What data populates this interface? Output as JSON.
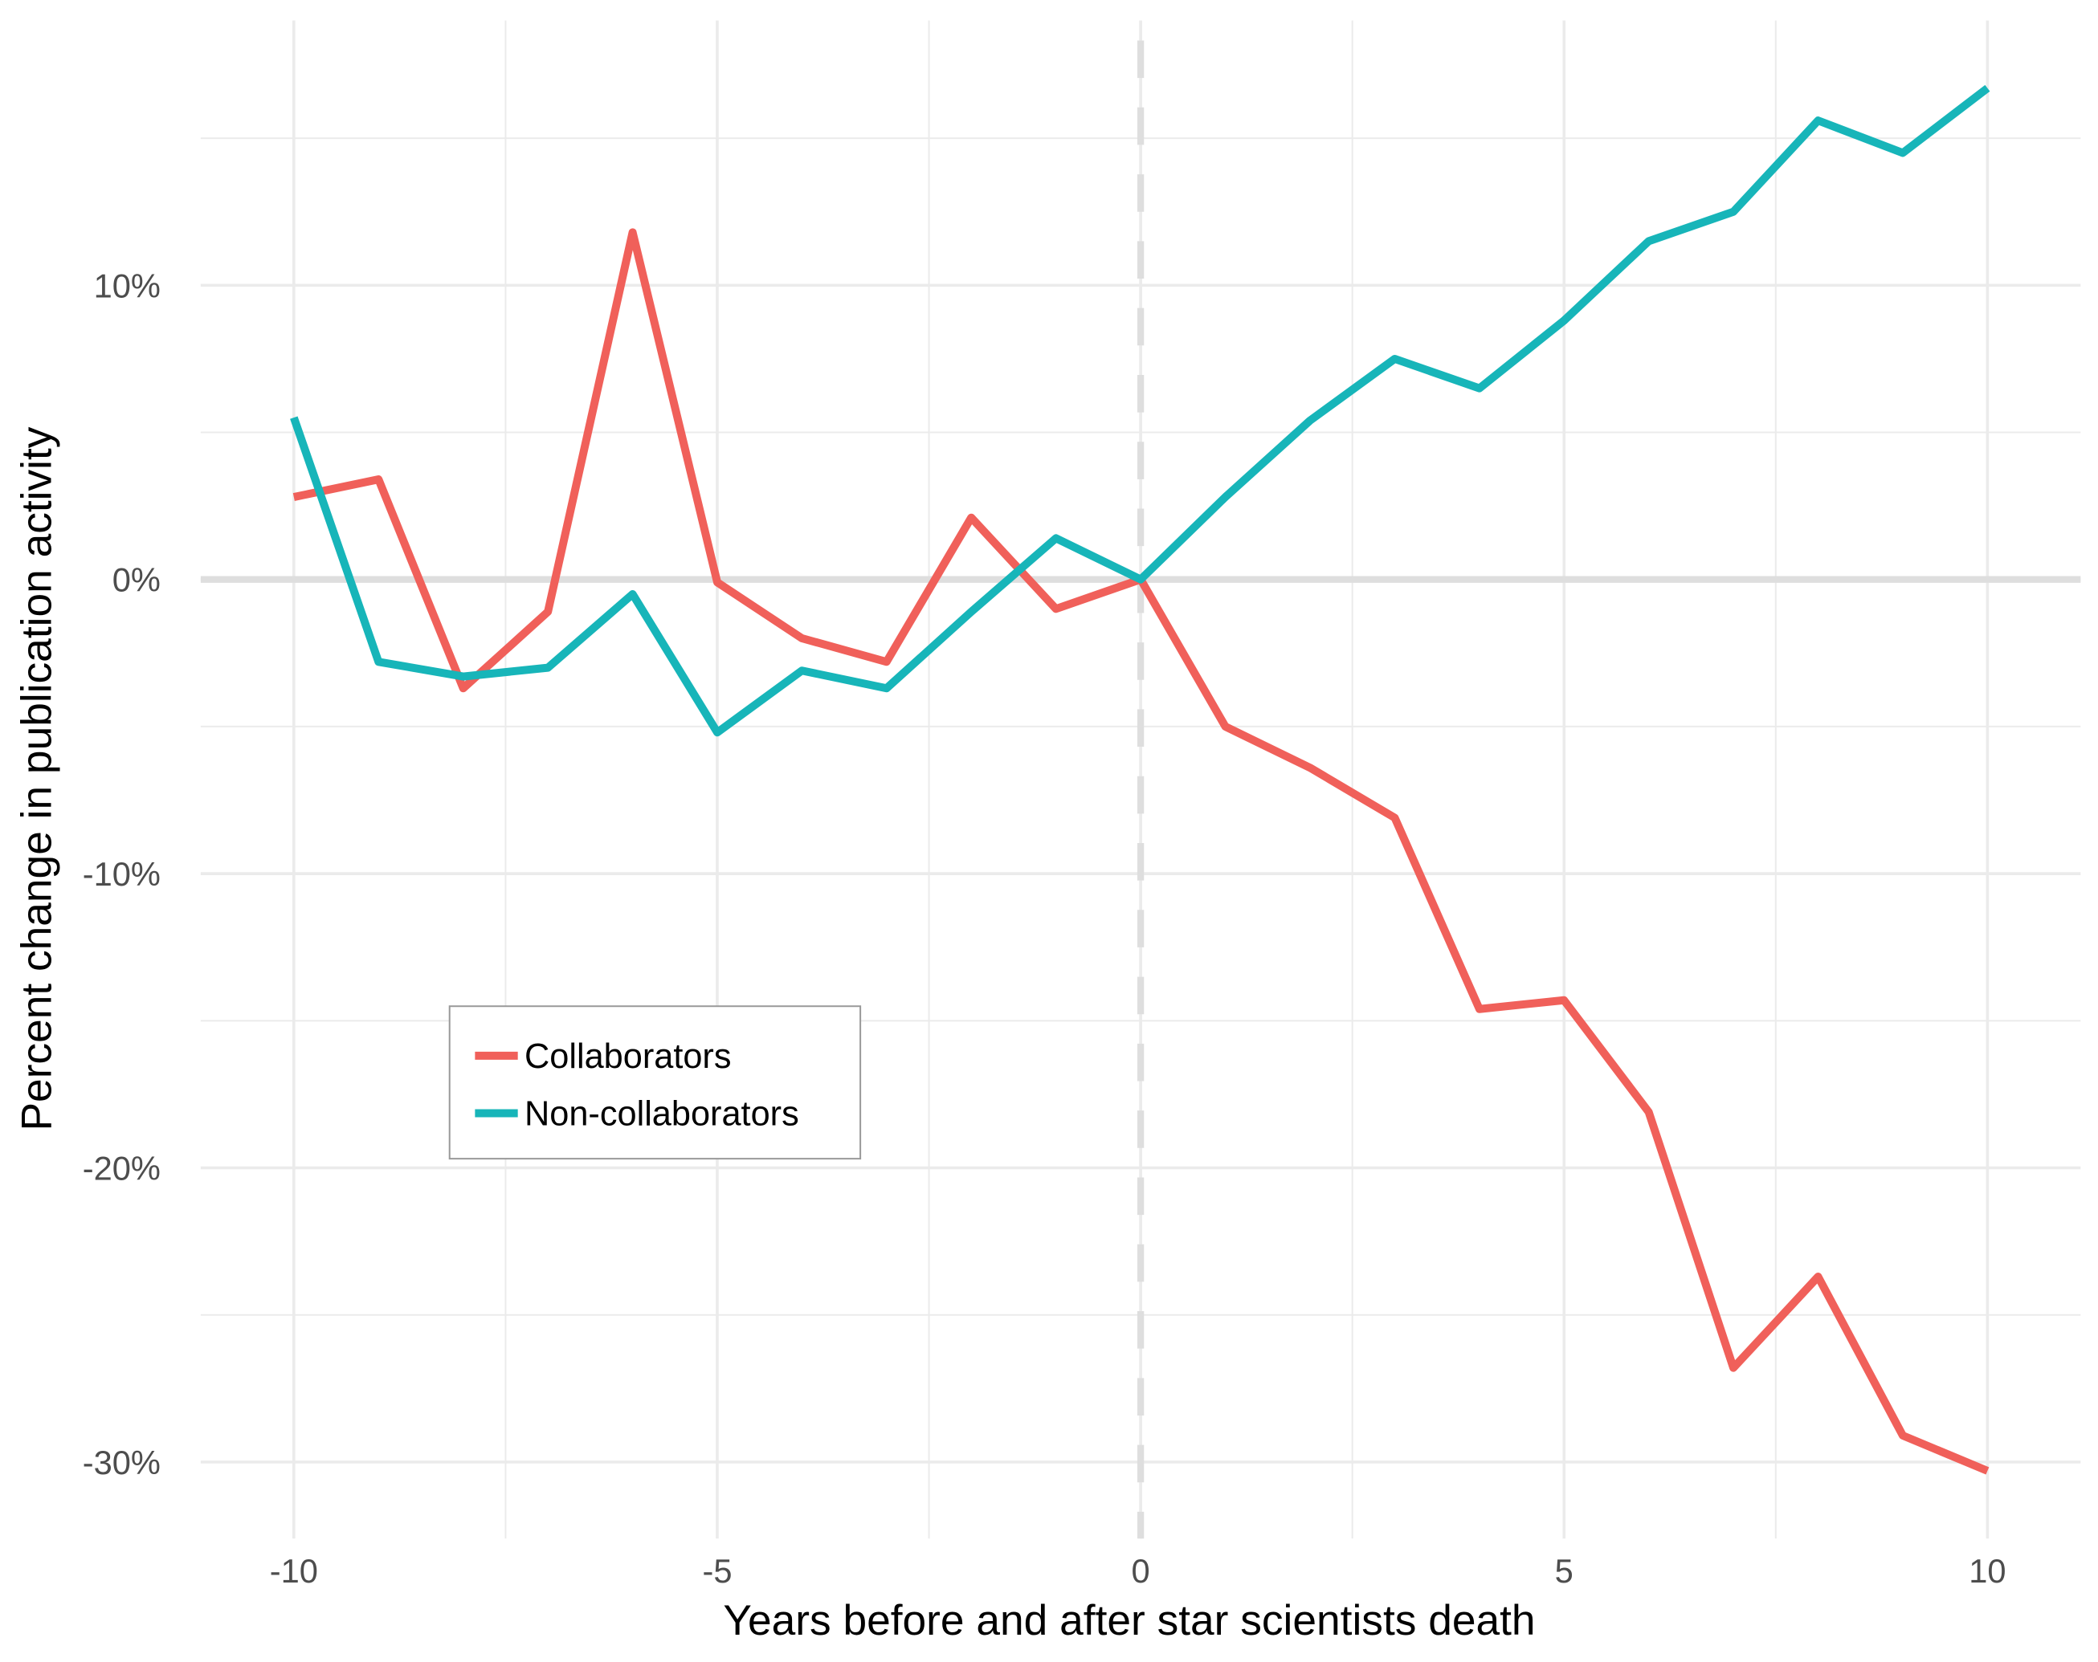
{
  "chart_data": {
    "type": "line",
    "title": "",
    "xlabel": "Years before and after star scientists death",
    "ylabel": "Percent change in publication activity",
    "x": [
      -10,
      -9,
      -8,
      -7,
      -6,
      -5,
      -4,
      -3,
      -2,
      -1,
      0,
      1,
      2,
      3,
      4,
      5,
      6,
      7,
      8,
      9,
      10
    ],
    "xlim": [
      -11.1,
      11.1
    ],
    "ylim": [
      -32.6,
      19
    ],
    "x_ticks": [
      -10,
      -5,
      0,
      5,
      10
    ],
    "x_tick_labels": [
      "-10",
      "-5",
      "0",
      "5",
      "10"
    ],
    "y_ticks": [
      -30,
      -20,
      -10,
      0,
      10
    ],
    "y_tick_labels": [
      "-30%",
      "-20%",
      "-10%",
      "0%",
      "10%"
    ],
    "grid": true,
    "reference_lines": {
      "horizontal_at": 0,
      "vertical_dashed_at": 0
    },
    "legend_position": "bottom-left inside",
    "series": [
      {
        "name": "Collaborators",
        "color": "#F0605A",
        "values": [
          2.8,
          3.4,
          -3.7,
          -1.1,
          11.8,
          -0.1,
          -2.0,
          -2.8,
          2.1,
          -1.0,
          0,
          -5.0,
          -6.4,
          -8.1,
          -14.6,
          -14.3,
          -18.1,
          -26.8,
          -23.7,
          -29.1,
          -30.3
        ]
      },
      {
        "name": "Non-collaborators",
        "color": "#17B5B9",
        "values": [
          5.5,
          -2.8,
          -3.3,
          -3.0,
          -0.5,
          -5.2,
          -3.1,
          -3.7,
          -1.1,
          1.4,
          0,
          2.8,
          5.4,
          7.5,
          6.5,
          8.8,
          11.5,
          12.5,
          15.6,
          14.5,
          16.7
        ]
      }
    ]
  }
}
